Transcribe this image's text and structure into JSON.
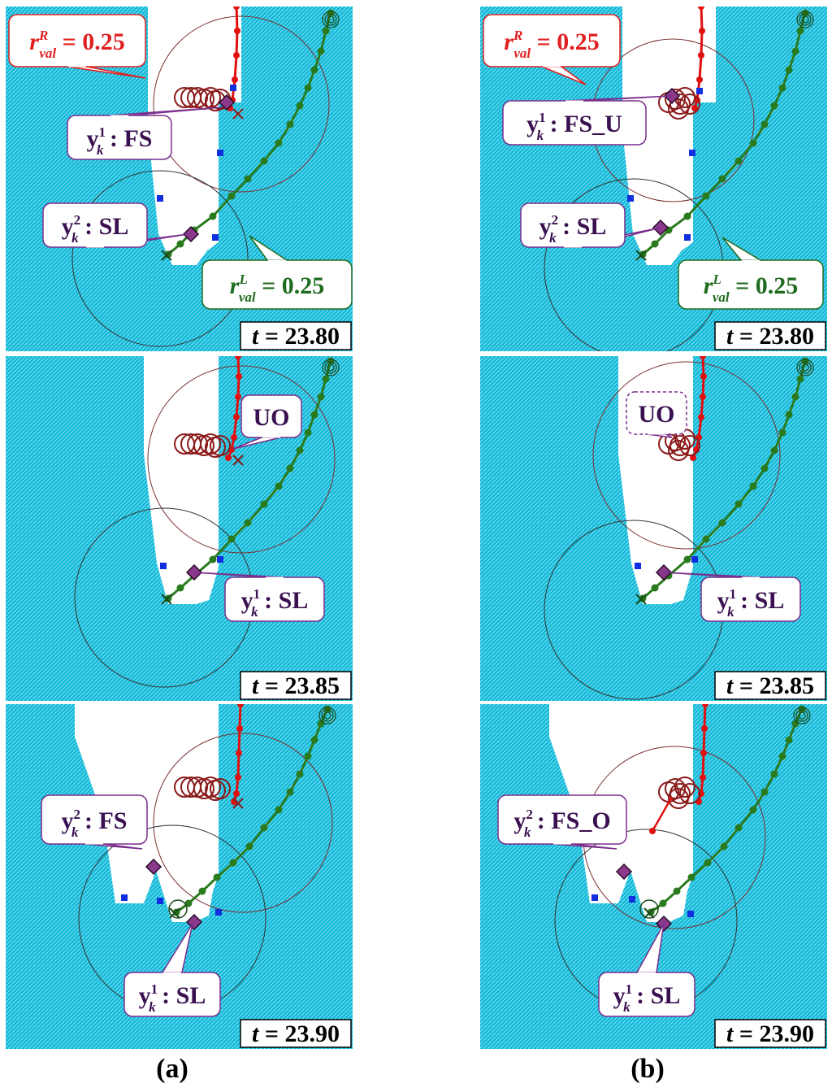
{
  "columns": [
    {
      "label": "(a)",
      "panels": [
        {
          "time": "23.80",
          "callouts": [
            {
              "text": "0.25",
              "sym": "r",
              "sup": "R",
              "sub": "val",
              "color": "#e02020",
              "style": "solid"
            },
            {
              "text": "FS",
              "sym": "y",
              "sup": "1",
              "sub": "k",
              "color": "#7a2e8c",
              "style": "solid"
            },
            {
              "text": "SL",
              "sym": "y",
              "sup": "2",
              "sub": "k",
              "color": "#7a2e8c",
              "style": "solid"
            },
            {
              "text": "0.25",
              "sym": "r",
              "sup": "L",
              "sub": "val",
              "color": "#1f6b1f",
              "style": "solid"
            }
          ]
        },
        {
          "time": "23.85",
          "callouts": [
            {
              "text": "UO",
              "color": "#7a2e8c",
              "style": "solid"
            },
            {
              "text": "SL",
              "sym": "y",
              "sup": "1",
              "sub": "k",
              "color": "#7a2e8c",
              "style": "solid"
            }
          ]
        },
        {
          "time": "23.90",
          "callouts": [
            {
              "text": "FS",
              "sym": "y",
              "sup": "2",
              "sub": "k",
              "color": "#7a2e8c",
              "style": "solid"
            },
            {
              "text": "SL",
              "sym": "y",
              "sup": "1",
              "sub": "k",
              "color": "#7a2e8c",
              "style": "solid"
            }
          ]
        }
      ]
    },
    {
      "label": "(b)",
      "panels": [
        {
          "time": "23.80",
          "callouts": [
            {
              "text": "0.25",
              "sym": "r",
              "sup": "R",
              "sub": "val",
              "color": "#e02020",
              "style": "solid"
            },
            {
              "text": "FS_U",
              "sym": "y",
              "sup": "1",
              "sub": "k",
              "color": "#7a2e8c",
              "style": "solid"
            },
            {
              "text": "SL",
              "sym": "y",
              "sup": "2",
              "sub": "k",
              "color": "#7a2e8c",
              "style": "solid"
            },
            {
              "text": "0.25",
              "sym": "r",
              "sup": "L",
              "sub": "val",
              "color": "#1f6b1f",
              "style": "solid"
            }
          ]
        },
        {
          "time": "23.85",
          "callouts": [
            {
              "text": "UO",
              "color": "#7a2e8c",
              "style": "dashed"
            },
            {
              "text": "SL",
              "sym": "y",
              "sup": "1",
              "sub": "k",
              "color": "#7a2e8c",
              "style": "solid"
            }
          ]
        },
        {
          "time": "23.90",
          "callouts": [
            {
              "text": "FS_O",
              "sym": "y",
              "sup": "2",
              "sub": "k",
              "color": "#7a2e8c",
              "style": "solid"
            },
            {
              "text": "SL",
              "sym": "y",
              "sup": "1",
              "sub": "k",
              "color": "#7a2e8c",
              "style": "solid"
            }
          ]
        }
      ]
    }
  ],
  "time_symbol": "t",
  "colors": {
    "water": "#1ec8e6",
    "right_track": "#e01010",
    "left_track": "#2a7a1e",
    "uncertainty_circles": "#8b1a1a",
    "measurement_marker": "#8b3a8b",
    "landmark": "#1030e0",
    "validation_circle_left": "#333333",
    "validation_circle_right": "#7a3030"
  }
}
